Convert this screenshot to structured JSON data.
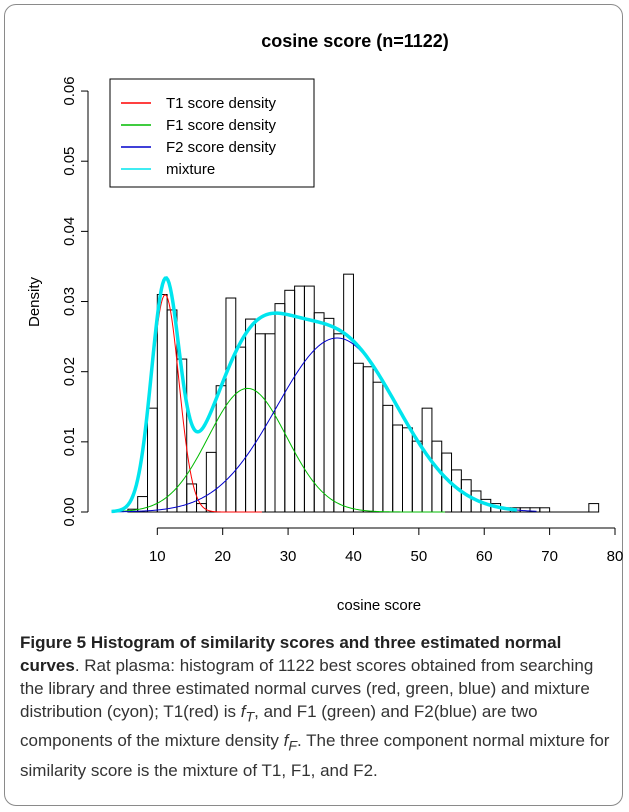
{
  "chart_data": {
    "type": "histogram",
    "title": "cosine score (n=1122)",
    "xlabel": "cosine score",
    "ylabel": "Density",
    "xlim": [
      2,
      80
    ],
    "ylim": [
      0,
      0.063
    ],
    "x_ticks": [
      10,
      20,
      30,
      40,
      50,
      60,
      70,
      80
    ],
    "x_tick_labels": [
      "10",
      "20",
      "30",
      "40",
      "50",
      "60",
      "70",
      "80"
    ],
    "y_ticks": [
      0.0,
      0.01,
      0.02,
      0.03,
      0.04,
      0.05,
      0.06
    ],
    "y_tick_labels": [
      "0.00",
      "0.01",
      "0.02",
      "0.03",
      "0.04",
      "0.05",
      "0.06"
    ],
    "bin_width": 1.5,
    "bins": [
      {
        "x0": 5.5,
        "density": 0.0004
      },
      {
        "x0": 7.0,
        "density": 0.0022
      },
      {
        "x0": 8.5,
        "density": 0.0148
      },
      {
        "x0": 10.0,
        "density": 0.031
      },
      {
        "x0": 11.5,
        "density": 0.0288
      },
      {
        "x0": 13.0,
        "density": 0.0218
      },
      {
        "x0": 14.5,
        "density": 0.004
      },
      {
        "x0": 16.0,
        "density": 0.0012
      },
      {
        "x0": 17.5,
        "density": 0.0085
      },
      {
        "x0": 19.0,
        "density": 0.018
      },
      {
        "x0": 20.5,
        "density": 0.0305
      },
      {
        "x0": 22.0,
        "density": 0.0235
      },
      {
        "x0": 23.5,
        "density": 0.0275
      },
      {
        "x0": 25.0,
        "density": 0.0254
      },
      {
        "x0": 26.5,
        "density": 0.0254
      },
      {
        "x0": 28.0,
        "density": 0.0297
      },
      {
        "x0": 29.5,
        "density": 0.0316
      },
      {
        "x0": 31.0,
        "density": 0.0322
      },
      {
        "x0": 32.5,
        "density": 0.0322
      },
      {
        "x0": 34.0,
        "density": 0.0284
      },
      {
        "x0": 35.5,
        "density": 0.0276
      },
      {
        "x0": 37.0,
        "density": 0.0254
      },
      {
        "x0": 38.5,
        "density": 0.0339
      },
      {
        "x0": 40.0,
        "density": 0.0212
      },
      {
        "x0": 41.5,
        "density": 0.0207
      },
      {
        "x0": 43.0,
        "density": 0.0185
      },
      {
        "x0": 44.5,
        "density": 0.0152
      },
      {
        "x0": 46.0,
        "density": 0.0124
      },
      {
        "x0": 47.5,
        "density": 0.012
      },
      {
        "x0": 49.0,
        "density": 0.0101
      },
      {
        "x0": 50.5,
        "density": 0.0148
      },
      {
        "x0": 52.0,
        "density": 0.0101
      },
      {
        "x0": 53.5,
        "density": 0.0084
      },
      {
        "x0": 55.0,
        "density": 0.006
      },
      {
        "x0": 56.5,
        "density": 0.0046
      },
      {
        "x0": 58.0,
        "density": 0.003
      },
      {
        "x0": 59.5,
        "density": 0.0018
      },
      {
        "x0": 61.0,
        "density": 0.0012
      },
      {
        "x0": 62.5,
        "density": 0.0006
      },
      {
        "x0": 64.0,
        "density": 0.0006
      },
      {
        "x0": 65.5,
        "density": 0.0006
      },
      {
        "x0": 67.0,
        "density": 0.0006
      },
      {
        "x0": 68.5,
        "density": 0.0006
      },
      {
        "x0": 76.0,
        "density": 0.0012
      }
    ],
    "series": [
      {
        "name": "T1 score density",
        "color": "#ff0000",
        "weight": 0.163,
        "mean": 11.2,
        "sd": 2.1
      },
      {
        "name": "F1 score density",
        "color": "#00bb00",
        "weight": 0.265,
        "mean": 23.8,
        "sd": 6.0
      },
      {
        "name": "F2 score density",
        "color": "#0000cc",
        "weight": 0.572,
        "mean": 37.5,
        "sd": 9.2
      },
      {
        "name": "mixture",
        "color": "#00e5ee"
      }
    ],
    "legend_position": "top-left"
  },
  "caption": {
    "label": "Figure 5",
    "bold_title": " Histogram of similarity scores and three estimated normal curves",
    "text_1": ". Rat plasma: histogram of 1122 best scores obtained from searching the library and three estimated normal curves (red, green, blue) and mixture distribution (cyon); T1(red) is ",
    "fT_base": "f",
    "fT_sub": "T",
    "text_2": ", and F1 (green) and F2(blue) are two components of the mixture density ",
    "fF_base": "f",
    "fF_sub": "F",
    "text_3": ". The three component normal mixture for similarity score is the mixture of T1, F1, and F2."
  }
}
